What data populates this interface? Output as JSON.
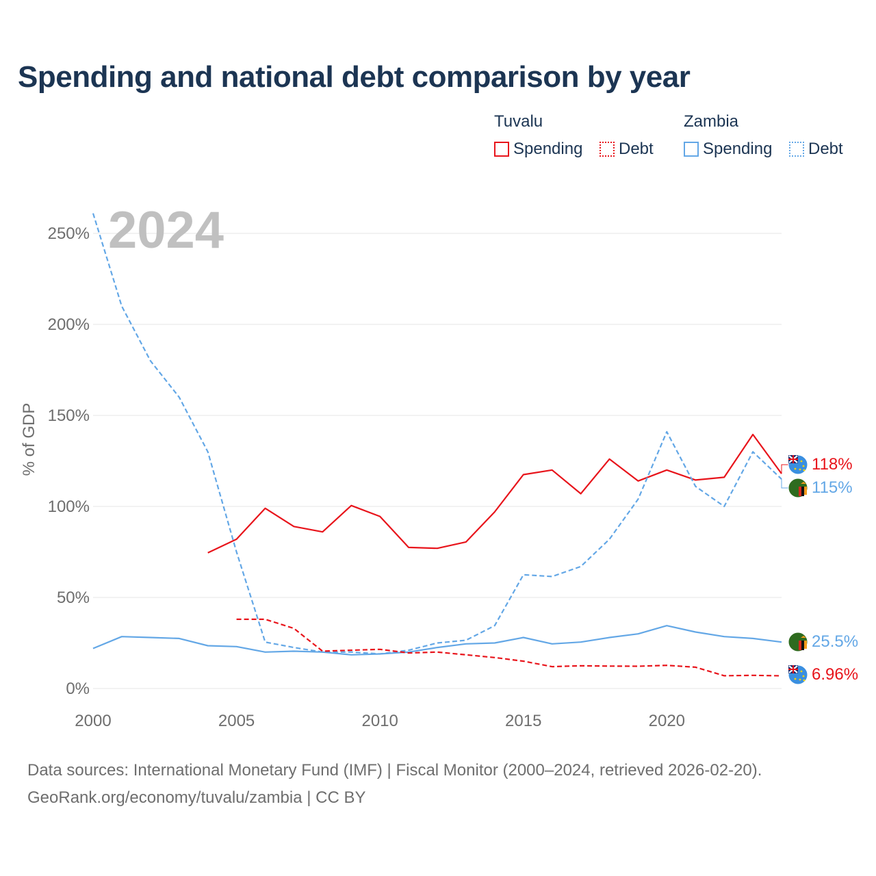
{
  "title": "Spending and national debt comparison by year",
  "legend": {
    "groups": [
      {
        "country": "Tuvalu",
        "items": [
          {
            "label": "Spending"
          },
          {
            "label": "Debt"
          }
        ]
      },
      {
        "country": "Zambia",
        "items": [
          {
            "label": "Spending"
          },
          {
            "label": "Debt"
          }
        ]
      }
    ]
  },
  "colors": {
    "tuvalu": "#e8141b",
    "zambia": "#63a7e6",
    "grid": "#e6e6e6",
    "axis_text": "#6e6e6e",
    "year_watermark": "#c0c0c0"
  },
  "chart_data": {
    "type": "line",
    "title": "Spending and national debt comparison by year",
    "year_label": "2024",
    "xlabel": "",
    "ylabel": "% of GDP",
    "xlim": [
      2000,
      2024
    ],
    "ylim": [
      0,
      260
    ],
    "x_ticks": [
      2000,
      2005,
      2010,
      2015,
      2020
    ],
    "y_ticks": [
      0,
      50,
      100,
      150,
      200,
      250
    ],
    "y_tick_labels": [
      "0%",
      "50%",
      "100%",
      "150%",
      "200%",
      "250%"
    ],
    "series": [
      {
        "name": "Tuvalu Spending",
        "country": "Tuvalu",
        "style": "solid",
        "color": "#e8141b",
        "x": [
          2004,
          2005,
          2006,
          2007,
          2008,
          2009,
          2010,
          2011,
          2012,
          2013,
          2014,
          2015,
          2016,
          2017,
          2018,
          2019,
          2020,
          2021,
          2022,
          2023,
          2024
        ],
        "values": [
          74.5,
          82,
          99,
          89,
          86,
          100.5,
          94.5,
          77.5,
          77,
          80.5,
          97,
          117.5,
          120,
          107,
          126,
          114,
          120,
          114.5,
          116,
          139.5,
          118
        ],
        "end_label": "118%"
      },
      {
        "name": "Zambia Debt",
        "country": "Zambia",
        "style": "dashed",
        "color": "#63a7e6",
        "x": [
          2000,
          2001,
          2002,
          2003,
          2004,
          2005,
          2006,
          2007,
          2008,
          2009,
          2010,
          2011,
          2012,
          2013,
          2014,
          2015,
          2016,
          2017,
          2018,
          2019,
          2020,
          2021,
          2022,
          2023,
          2024
        ],
        "values": [
          261,
          210,
          180,
          160,
          130,
          75,
          25.5,
          22.5,
          20,
          20,
          19,
          21,
          25,
          26.5,
          34.5,
          62.5,
          61.5,
          67,
          82,
          104,
          141,
          111,
          100,
          130,
          115
        ],
        "end_label": "115%"
      },
      {
        "name": "Zambia Spending",
        "country": "Zambia",
        "style": "solid",
        "color": "#63a7e6",
        "x": [
          2000,
          2001,
          2002,
          2003,
          2004,
          2005,
          2006,
          2007,
          2008,
          2009,
          2010,
          2011,
          2012,
          2013,
          2014,
          2015,
          2016,
          2017,
          2018,
          2019,
          2020,
          2021,
          2022,
          2023,
          2024
        ],
        "values": [
          22,
          28.5,
          28,
          27.5,
          23.5,
          23,
          20,
          20.5,
          20,
          18.5,
          19,
          20,
          22.5,
          24.5,
          25,
          28,
          24.5,
          25.5,
          28,
          30,
          34.5,
          31,
          28.5,
          27.5,
          25.5
        ],
        "end_label": "25.5%"
      },
      {
        "name": "Tuvalu Debt",
        "country": "Tuvalu",
        "style": "dashed",
        "color": "#e8141b",
        "x": [
          2005,
          2006,
          2007,
          2008,
          2009,
          2010,
          2011,
          2012,
          2013,
          2014,
          2015,
          2016,
          2017,
          2018,
          2019,
          2020,
          2021,
          2022,
          2023,
          2024
        ],
        "values": [
          38,
          38,
          33,
          20.5,
          21,
          21.5,
          19.5,
          20,
          18.5,
          17,
          15,
          12,
          12.5,
          12.3,
          12.2,
          12.7,
          11.7,
          7,
          7.2,
          6.96
        ],
        "end_label": "6.96%"
      }
    ]
  },
  "footer": {
    "sources": "Data sources: International Monetary Fund (IMF) | Fiscal Monitor (2000–2024, retrieved 2026-02-20).",
    "credit": "GeoRank.org/economy/tuvalu/zambia | CC BY"
  }
}
